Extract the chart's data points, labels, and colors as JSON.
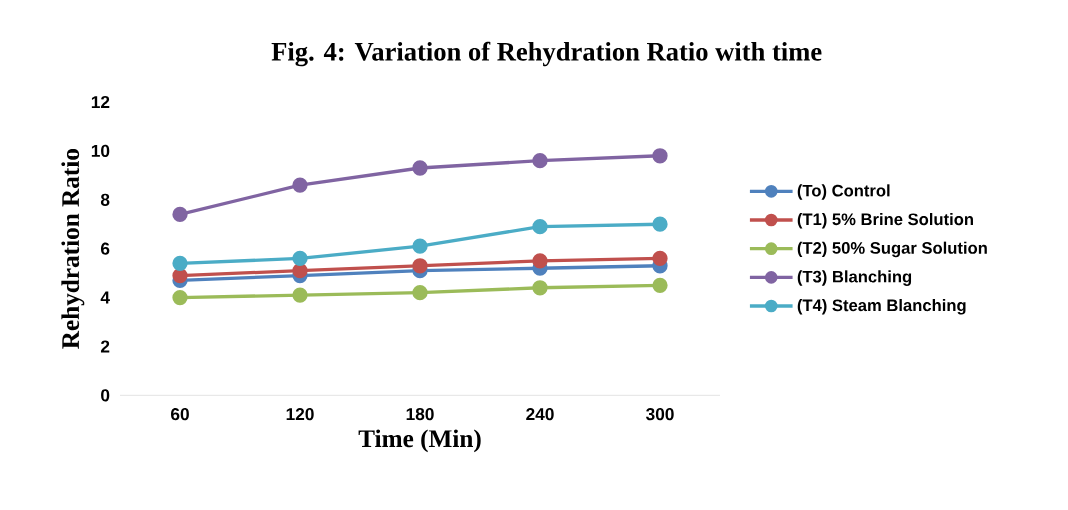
{
  "chart_data": {
    "type": "line",
    "title": "Fig. 4: Variation of Rehydration Ratio with time",
    "xlabel": "Time (Min)",
    "ylabel": "Rehydration Ratio",
    "categories": [
      "60",
      "120",
      "180",
      "240",
      "300"
    ],
    "series": [
      {
        "name": "(To) Control",
        "color": "#4f81bd",
        "values": [
          4.7,
          4.9,
          5.1,
          5.2,
          5.3
        ]
      },
      {
        "name": "(T1) 5% Brine Solution",
        "color": "#c0504d",
        "values": [
          4.9,
          5.1,
          5.3,
          5.5,
          5.6
        ]
      },
      {
        "name": "(T2) 50% Sugar Solution",
        "color": "#9bbb59",
        "values": [
          4.0,
          4.1,
          4.2,
          4.4,
          4.5
        ]
      },
      {
        "name": "(T3) Blanching",
        "color": "#8064a2",
        "values": [
          7.4,
          8.6,
          9.3,
          9.6,
          9.8
        ]
      },
      {
        "name": "(T4) Steam Blanching",
        "color": "#4bacc6",
        "values": [
          5.4,
          5.6,
          6.1,
          6.9,
          7.0
        ]
      }
    ],
    "ylim": [
      0,
      12
    ],
    "yticks": [
      0,
      2,
      4,
      6,
      8,
      10,
      12
    ],
    "grid": false,
    "legend": "right",
    "marker": "circle",
    "line_style": "solid"
  }
}
